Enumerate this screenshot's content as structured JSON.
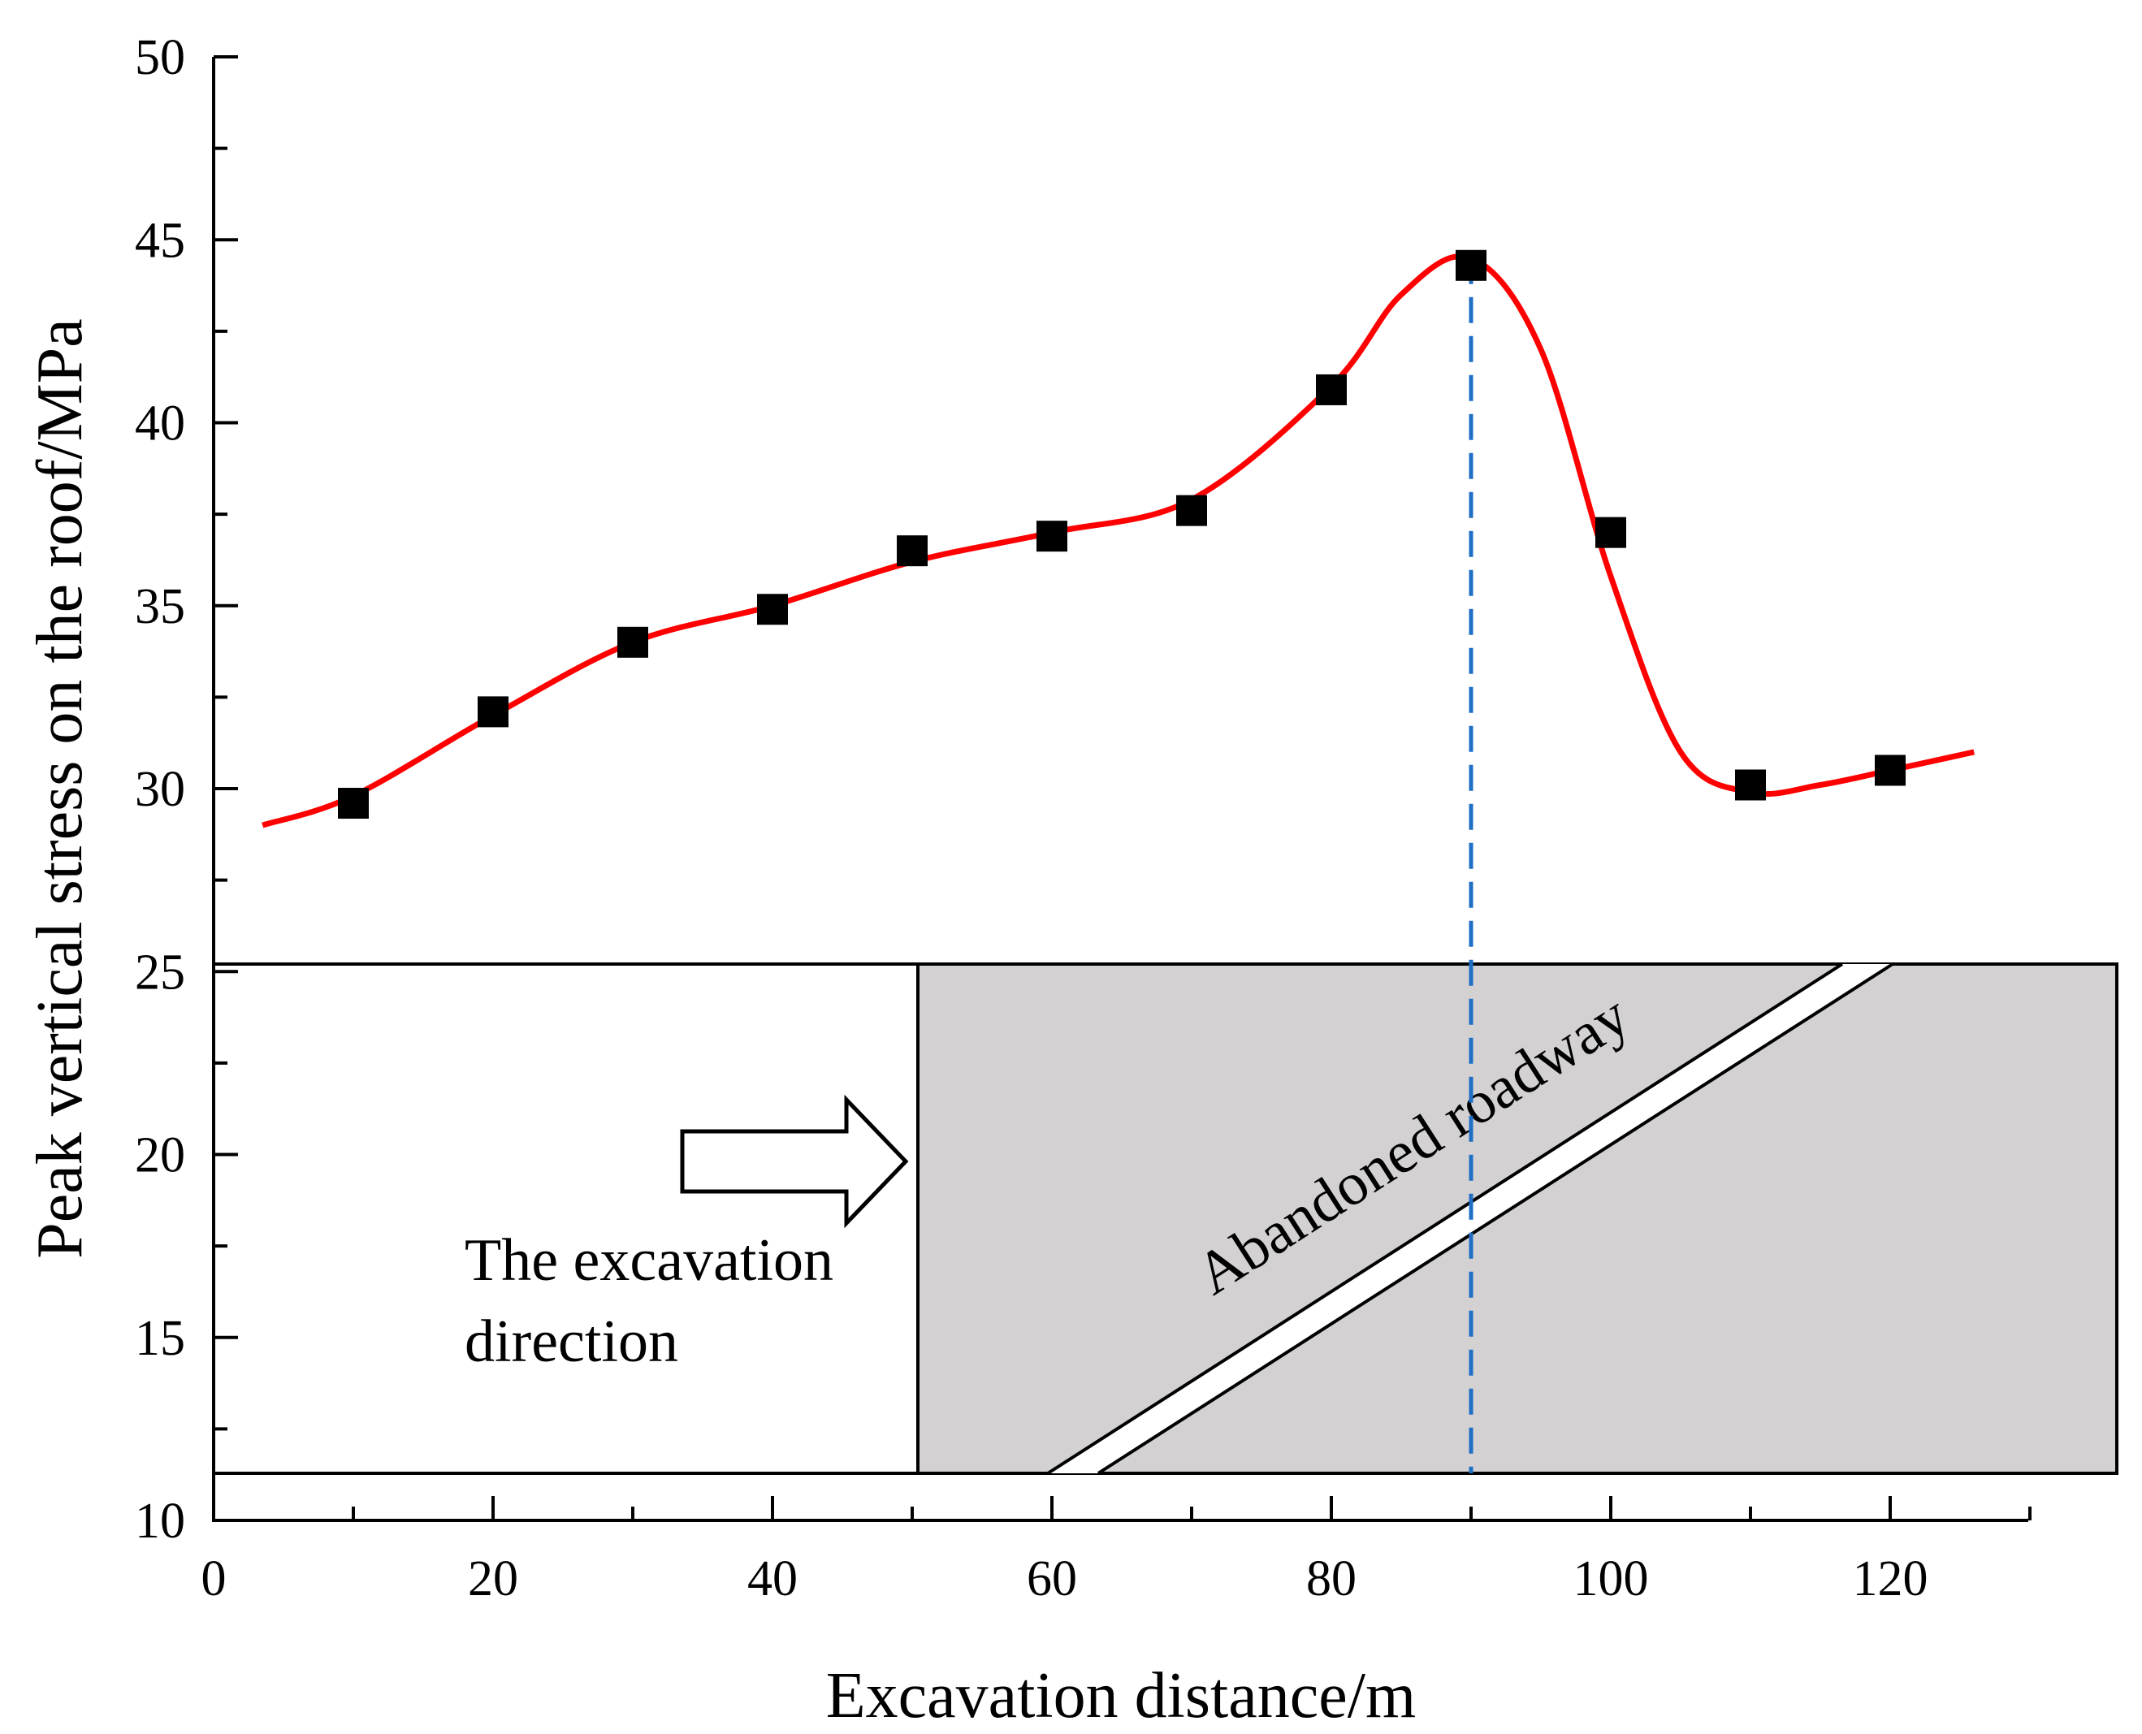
{
  "chart_data": {
    "type": "scatter",
    "xlabel": "Excavation distance/m",
    "ylabel": "Peak vertical stress on the roof/MPa",
    "xlim": [
      0,
      130
    ],
    "ylim": [
      10,
      50
    ],
    "xticks": [
      0,
      20,
      40,
      60,
      80,
      100,
      120
    ],
    "yticks": [
      10,
      15,
      20,
      25,
      30,
      35,
      40,
      45,
      50
    ],
    "grid": false,
    "series": [
      {
        "style": "markers",
        "marker": "square",
        "color": "#000000",
        "x": [
          10,
          20,
          30,
          40,
          50,
          60,
          70,
          80,
          90,
          100,
          110,
          120
        ],
        "y": [
          29.6,
          32.1,
          34.0,
          34.9,
          36.5,
          36.9,
          37.6,
          40.9,
          44.3,
          37.0,
          30.1,
          30.5
        ]
      },
      {
        "style": "smooth-line",
        "color": "#ff0000",
        "x": [
          3.5,
          10,
          20,
          30,
          40,
          50,
          60,
          70,
          80,
          85,
          90,
          95,
          100,
          105,
          110,
          115,
          120,
          126
        ],
        "y": [
          29.0,
          29.8,
          32.0,
          34.0,
          35.0,
          36.2,
          37.0,
          37.9,
          41.0,
          43.5,
          44.5,
          42.0,
          35.8,
          31.0,
          29.9,
          30.1,
          30.5,
          31.0
        ]
      }
    ],
    "reference_line": {
      "x": 90,
      "color": "#1f6fc5",
      "style": "dashed"
    },
    "annotations": {
      "direction_label_line1": "The excavation",
      "direction_label_line2": "direction",
      "roadway_label": "Abandoned roadway"
    }
  },
  "colors": {
    "curve": "#ff0000",
    "marker": "#000000",
    "reference_line": "#1f6fc5",
    "rock_fill": "#d4d1d3",
    "roadway_fill": "#ffffff"
  }
}
